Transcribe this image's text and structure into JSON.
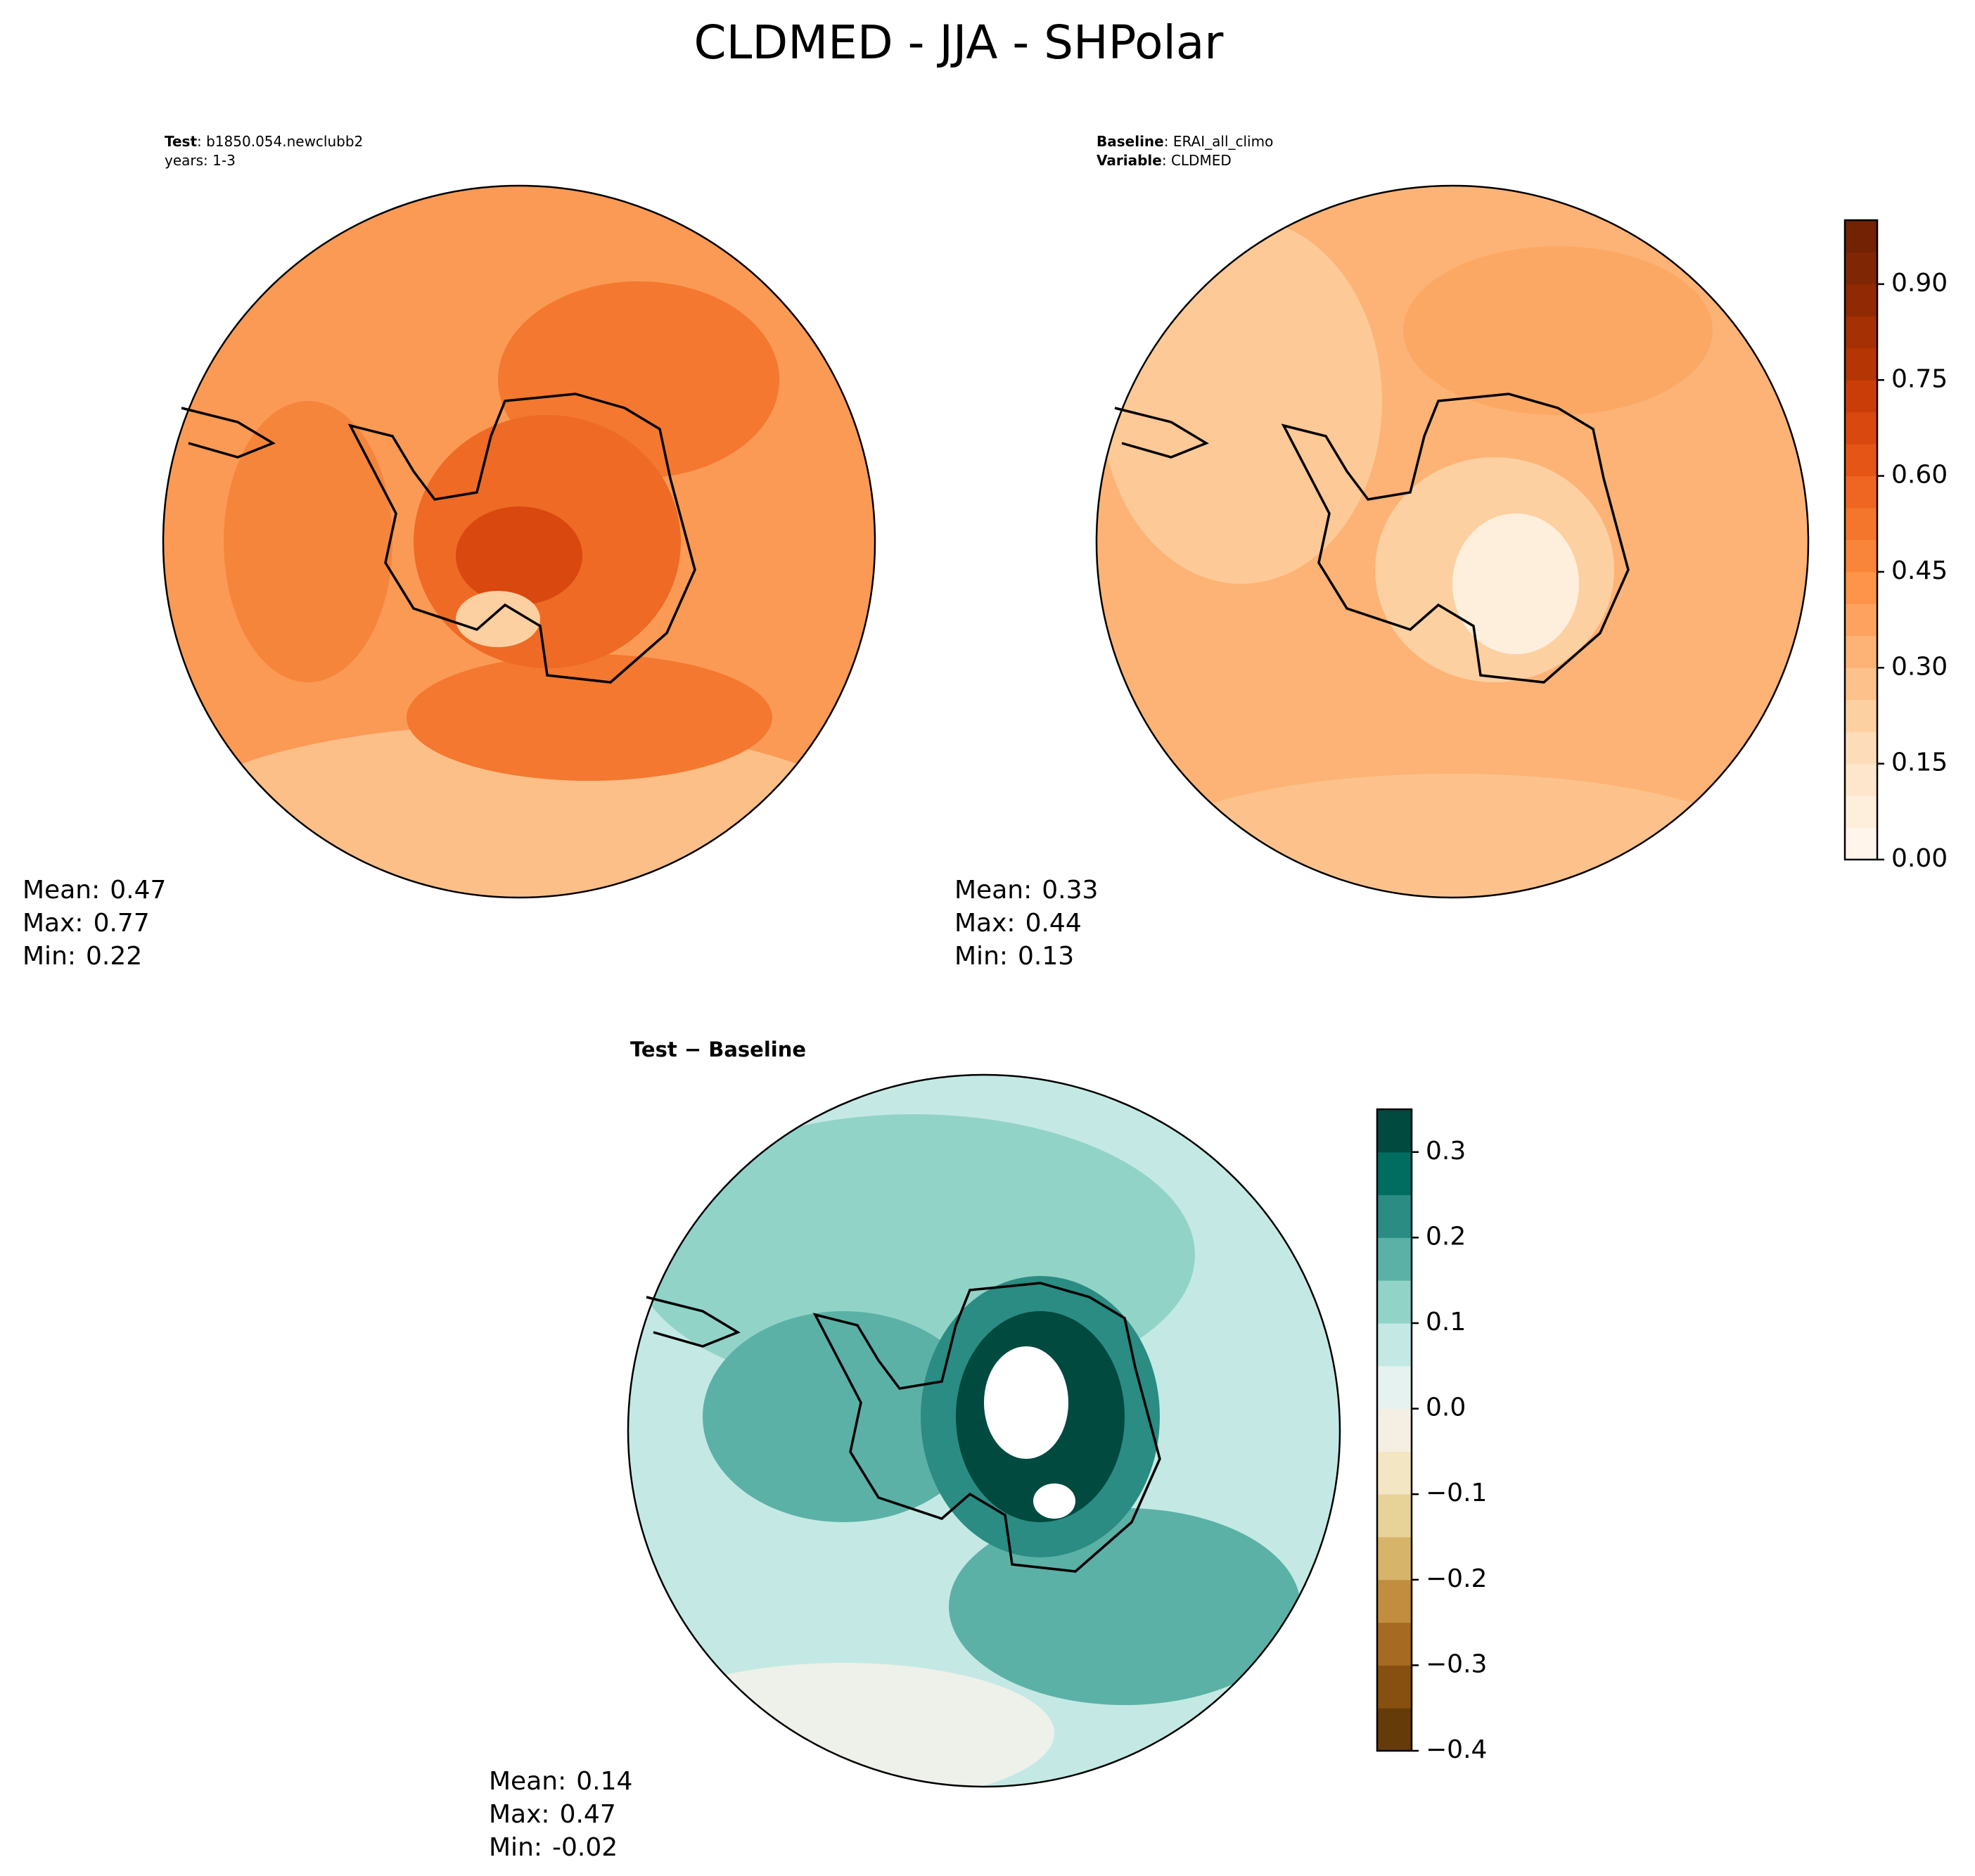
{
  "title": "CLDMED - JJA - SHPolar",
  "panels": [
    {
      "header": [
        {
          "label": "Test",
          "value": ": b1850.054.newclubb2"
        },
        {
          "label": "",
          "value": "years: 1-3"
        }
      ],
      "stats": [
        {
          "label": "Mean:",
          "value": 0.47
        },
        {
          "label": "Max:",
          "value": 0.77
        },
        {
          "label": "Min:",
          "value": 0.22
        }
      ]
    },
    {
      "header": [
        {
          "label": "Baseline",
          "value": ": ERAI_all_climo"
        },
        {
          "label": "Variable",
          "value": ": CLDMED"
        }
      ],
      "stats": [
        {
          "label": "Mean:",
          "value": 0.33
        },
        {
          "label": "Max:",
          "value": 0.44
        },
        {
          "label": "Min:",
          "value": 0.13
        }
      ]
    },
    {
      "header": [
        {
          "label": "Test − Baseline",
          "value": ""
        }
      ],
      "stats": [
        {
          "label": "Mean:",
          "value": 0.14
        },
        {
          "label": "Max:",
          "value": 0.47
        },
        {
          "label": "Min:",
          "value": -0.02
        }
      ]
    }
  ],
  "colorbars": [
    {
      "ylim": [
        0,
        1.0
      ],
      "yticks": [
        {
          "value": 0,
          "label": "0.00"
        },
        0.15,
        {
          "value": 0.3,
          "label": "0.30"
        },
        0.45,
        {
          "value": 0.6,
          "label": "0.60"
        },
        0.75,
        {
          "value": 0.9,
          "label": "0.90"
        }
      ],
      "colors": [
        "#fff5eb",
        "#feeedc",
        "#fee6cc",
        "#fddcb9",
        "#fdd0a2",
        "#fdc28b",
        "#fdb375",
        "#fda35f",
        "#fd9449",
        "#f9853a",
        "#f4762c",
        "#ee6621",
        "#e55515",
        "#d9480f",
        "#cb3d08",
        "#b63504",
        "#a43003",
        "#912a04",
        "#7f2704",
        "#732204"
      ]
    },
    {
      "ylim": [
        -0.4,
        0.35
      ],
      "yticks": [
        {
          "value": -0.4,
          "label": "−0.4"
        },
        {
          "value": -0.3,
          "label": "−0.3"
        },
        {
          "value": -0.2,
          "label": "−0.2"
        },
        {
          "value": -0.1,
          "label": "−0.1"
        },
        {
          "value": 0,
          "label": "0.0"
        },
        0.1,
        0.2,
        0.3
      ],
      "colors": [
        "#653b0a",
        "#874f10",
        "#a66a22",
        "#c28d3f",
        "#d6b46a",
        "#e7d297",
        "#f2e6c3",
        "#f4efe2",
        "#e5f2ef",
        "#c4e9e4",
        "#92d3c8",
        "#5cb1a7",
        "#2a8c82",
        "#006d60",
        "#004a40"
      ]
    }
  ]
}
